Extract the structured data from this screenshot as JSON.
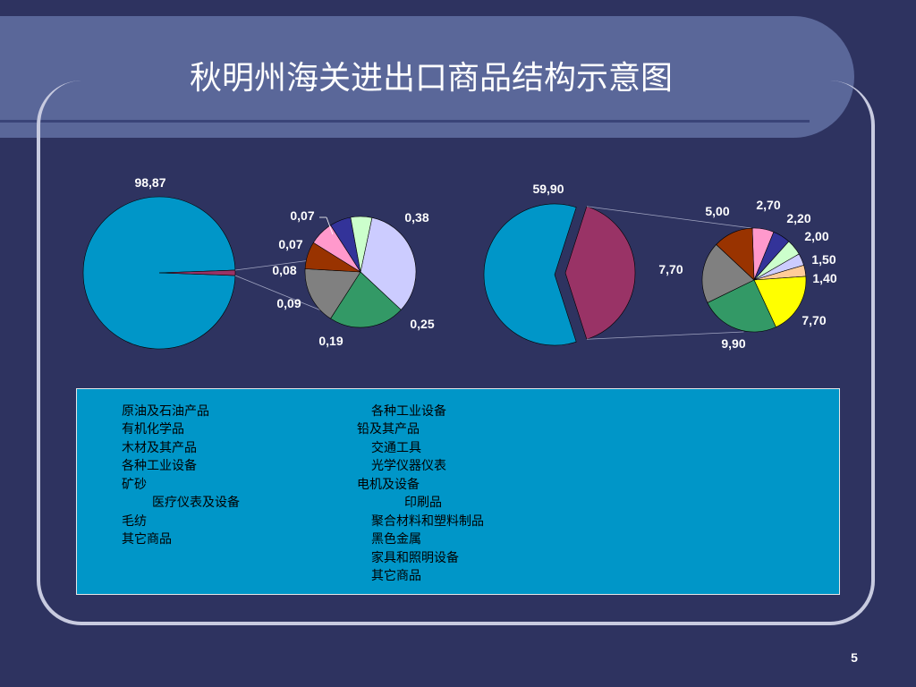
{
  "slide": {
    "title": "秋明州海关进出口商品结构示意图",
    "page_number": "5"
  },
  "colors": {
    "background": "#2e3360",
    "title_band": "#5a6799",
    "legend_bg": "#0096c8"
  },
  "chart_data": [
    {
      "type": "pie",
      "name": "",
      "main_pie": {
        "values": [
          98.87,
          1.13
        ],
        "labels": [
          "98,87",
          ""
        ],
        "colors": [
          "#0096c8",
          "#993366"
        ]
      },
      "exploded_pie": {
        "values": [
          0.38,
          0.25,
          0.19,
          0.09,
          0.08,
          0.07,
          0.07
        ],
        "labels": [
          "0,38",
          "0,25",
          "0,19",
          "0,09",
          "0,08",
          "0,07",
          "0,07"
        ],
        "colors": [
          "#ccccff",
          "#339966",
          "#808080",
          "#993300",
          "#ff99cc",
          "#333399",
          "#ccffcc"
        ]
      }
    },
    {
      "type": "pie",
      "name": "",
      "main_pie": {
        "values": [
          59.9,
          40.1
        ],
        "labels": [
          "59,90",
          ""
        ],
        "colors": [
          "#0096c8",
          "#993366"
        ]
      },
      "exploded_pie": {
        "values": [
          2.7,
          2.2,
          2.0,
          1.5,
          1.4,
          7.7,
          9.9,
          7.7,
          5.0
        ],
        "labels": [
          "2,70",
          "2,20",
          "2,00",
          "1,50",
          "1,40",
          "7,70",
          "9,90",
          "7,70",
          "5,00"
        ],
        "colors": [
          "#ff99cc",
          "#333399",
          "#ccffcc",
          "#ccccff",
          "#ffcc99",
          "#ffff00",
          "#339966",
          "#808080",
          "#993300"
        ]
      }
    }
  ],
  "legend": {
    "left": [
      "原油及石油产品",
      "有机化学品",
      "木材及其产品",
      "各种工业设备",
      "矿砂",
      "医疗仪表及设备",
      "毛纺",
      "其它商品"
    ],
    "right": [
      "各种工业设备",
      "铅及其产品",
      "交通工具",
      "光学仪器仪表",
      "电机及设备",
      "印刷品",
      "聚合材料和塑料制品",
      "黑色金属",
      "家具和照明设备",
      "其它商品"
    ]
  }
}
